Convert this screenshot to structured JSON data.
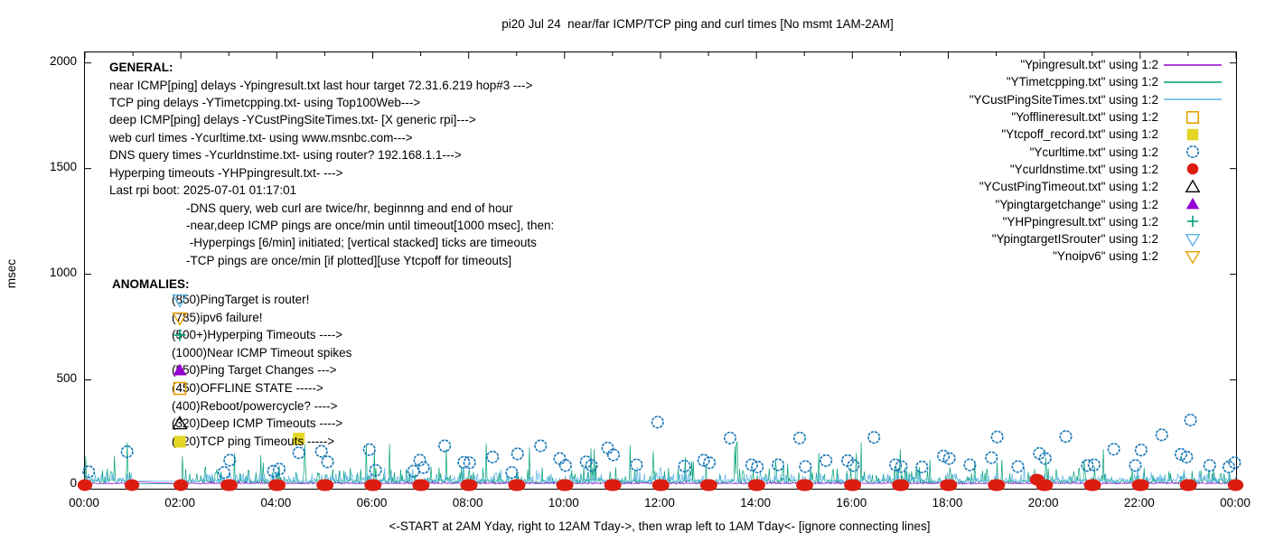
{
  "title": "pi20 Jul 24  near/far ICMP/TCP ping and curl times [No msmt 1AM-2AM]",
  "ylabel": "msec",
  "xlabel_note": "<-START at 2AM Yday, right to 12AM Tday->, then wrap left to 1AM Tday<- [ignore connecting lines]",
  "general": {
    "heading": "GENERAL:",
    "lines": [
      "near ICMP[ping] delays -Ypingresult.txt last hour target 72.31.6.219 hop#3 --->",
      "TCP ping delays -YTimetcpping.txt- using Top100Web--->",
      "deep ICMP[ping] delays -YCustPingSiteTimes.txt- [X generic rpi]--->",
      "web curl times -Ycurltime.txt- using www.msnbc.com--->",
      "DNS query times -Ycurldnstime.txt- using router? 192.168.1.1--->",
      "Hyperping timeouts -YHPpingresult.txt- --->",
      "Last rpi boot: 2025-07-01 01:17:01"
    ],
    "sub_lines": [
      "-DNS query, web curl are twice/hr, beginnng and end of hour",
      "-near,deep ICMP pings are once/min until timeout[1000 msec], then:",
      " -Hyperpings [6/min] initiated; [vertical stacked] ticks are timeouts",
      "-TCP pings are once/min [if plotted][use Ytcpoff for timeouts]"
    ]
  },
  "anomalies": {
    "heading": "ANOMALIES:",
    "items": [
      {
        "marker": "triangle-down-open",
        "color": "#5ab4e5",
        "label": "(850)PingTarget is router!"
      },
      {
        "marker": "triangle-down-open",
        "color": "#e8a000",
        "label": "(785)ipv6 failure!"
      },
      {
        "marker": "plus",
        "color": "#00a077",
        "label": "(500+)Hyperping Timeouts ---->"
      },
      {
        "marker": "none",
        "color": "#000000",
        "label": "(1000)Near ICMP Timeout spikes"
      },
      {
        "marker": "triangle-up-filled",
        "color": "#9400d3",
        "label": "(550)Ping Target Changes --->"
      },
      {
        "marker": "square-open",
        "color": "#e8a000",
        "label": "(450)OFFLINE STATE ----->"
      },
      {
        "marker": "none",
        "color": "#000000",
        "label": "(400)Reboot/powercycle? ---->"
      },
      {
        "marker": "triangle-up-open",
        "color": "#000000",
        "label": "(320)Deep ICMP Timeouts ---->"
      },
      {
        "marker": "square-filled",
        "color": "#e3d625",
        "label": "(220)TCP ping Timeouts ----->"
      }
    ]
  },
  "legend": {
    "entries": [
      {
        "label": "\"Ypingresult.txt\" using 1:2",
        "marker": "line",
        "color": "#9400d3"
      },
      {
        "label": "\"YTimetcpping.txt\" using 1:2",
        "marker": "line",
        "color": "#00a077"
      },
      {
        "label": "\"YCustPingSiteTimes.txt\" using 1:2",
        "marker": "line",
        "color": "#5ab4e5"
      },
      {
        "label": "\"Yofflineresult.txt\" using 1:2",
        "marker": "square-open",
        "color": "#e8a000"
      },
      {
        "label": "\"Ytcpoff_record.txt\" using 1:2",
        "marker": "square-filled",
        "color": "#e3d625"
      },
      {
        "label": "\"Ycurltime.txt\" using 1:2",
        "marker": "circle-open",
        "color": "#1576b5"
      },
      {
        "label": "\"Ycurldnstime.txt\" using 1:2",
        "marker": "circle-filled",
        "color": "#dd1c10"
      },
      {
        "label": "\"YCustPingTimeout.txt\" using 1:2",
        "marker": "triangle-up-open",
        "color": "#000000"
      },
      {
        "label": "\"Ypingtargetchange\" using 1:2",
        "marker": "triangle-up-filled",
        "color": "#9400d3"
      },
      {
        "label": "\"YHPpingresult.txt\" using 1:2",
        "marker": "plus",
        "color": "#00a077"
      },
      {
        "label": "\"YpingtargetISrouter\" using 1:2",
        "marker": "triangle-down-open",
        "color": "#5ab4e5"
      },
      {
        "label": "\"Ynoipv6\" using 1:2",
        "marker": "triangle-down-open",
        "color": "#e8a000"
      }
    ]
  },
  "chart_data": {
    "type": "line+scatter time series (gnuplot style)",
    "x_axis": {
      "tick_labels": [
        "00:00",
        "02:00",
        "04:00",
        "06:00",
        "08:00",
        "10:00",
        "12:00",
        "14:00",
        "16:00",
        "18:00",
        "20:00",
        "22:00",
        "00:00"
      ],
      "tick_hours": [
        0,
        2,
        4,
        6,
        8,
        10,
        12,
        14,
        16,
        18,
        20,
        22,
        24
      ],
      "minor_tick_every_hours": 1,
      "range_hours": [
        0,
        24
      ]
    },
    "y_axis": {
      "label": "msec",
      "ticks": [
        0,
        500,
        1000,
        1500,
        2000
      ],
      "range": [
        -15,
        2050
      ],
      "grid": false
    },
    "measurement_gap": "No measurements 01:00-02:00 (connecting line drawn across gap)",
    "noise_seed": 7,
    "noise_series": [
      {
        "name": "YTimetcpping.txt",
        "style": "line",
        "color": "#00a077",
        "description": "TCP ping delays, once/min; noisy spikes",
        "baseline_msec": 8,
        "typical_max_msec": 90,
        "rare_spike_max_msec": 210
      },
      {
        "name": "YCustPingSiteTimes.txt",
        "style": "line",
        "color": "#5ab4e5",
        "description": "deep ICMP ping delays, once/min; noisy",
        "baseline_msec": 10,
        "typical_max_msec": 60,
        "rare_spike_max_msec": 90
      },
      {
        "name": "Ypingresult.txt",
        "style": "line",
        "color": "#9400d3",
        "description": "near ICMP ping delays; nearly flat",
        "baseline_msec": 8,
        "typical_max_msec": 14,
        "rare_spike_max_msec": 20
      }
    ],
    "point_series": [
      {
        "name": "Ycurltime.txt",
        "style": "circle-open",
        "color": "#1576b5",
        "description": "web curl times, twice/hr (beginning and end of hour), msec",
        "points": [
          [
            0.08,
            65
          ],
          [
            0.88,
            160
          ],
          [
            2.9,
            62
          ],
          [
            3.02,
            120
          ],
          [
            3.93,
            68
          ],
          [
            4.05,
            78
          ],
          [
            4.46,
            155
          ],
          [
            4.93,
            162
          ],
          [
            5.06,
            112
          ],
          [
            5.93,
            170
          ],
          [
            6.06,
            72
          ],
          [
            6.85,
            68
          ],
          [
            6.98,
            120
          ],
          [
            7.06,
            85
          ],
          [
            7.5,
            188
          ],
          [
            7.9,
            110
          ],
          [
            8.02,
            108
          ],
          [
            8.5,
            135
          ],
          [
            8.9,
            62
          ],
          [
            9.02,
            150
          ],
          [
            9.5,
            188
          ],
          [
            9.9,
            128
          ],
          [
            10.02,
            95
          ],
          [
            10.45,
            112
          ],
          [
            10.56,
            95
          ],
          [
            10.9,
            178
          ],
          [
            11.02,
            145
          ],
          [
            11.5,
            98
          ],
          [
            11.94,
            300
          ],
          [
            12.5,
            92
          ],
          [
            12.9,
            120
          ],
          [
            13.02,
            108
          ],
          [
            13.45,
            225
          ],
          [
            13.9,
            98
          ],
          [
            14.02,
            88
          ],
          [
            14.45,
            98
          ],
          [
            14.9,
            225
          ],
          [
            15.02,
            90
          ],
          [
            15.45,
            118
          ],
          [
            15.9,
            118
          ],
          [
            16.02,
            95
          ],
          [
            16.45,
            228
          ],
          [
            16.9,
            98
          ],
          [
            17.02,
            90
          ],
          [
            17.45,
            88
          ],
          [
            17.9,
            140
          ],
          [
            18.02,
            128
          ],
          [
            18.45,
            98
          ],
          [
            18.9,
            132
          ],
          [
            19.02,
            230
          ],
          [
            19.45,
            90
          ],
          [
            19.9,
            152
          ],
          [
            20.02,
            128
          ],
          [
            20.45,
            232
          ],
          [
            20.9,
            95
          ],
          [
            21.04,
            98
          ],
          [
            21.45,
            172
          ],
          [
            21.9,
            95
          ],
          [
            22.02,
            168
          ],
          [
            22.45,
            240
          ],
          [
            22.85,
            148
          ],
          [
            22.97,
            135
          ],
          [
            23.05,
            310
          ],
          [
            23.45,
            95
          ],
          [
            23.85,
            88
          ],
          [
            23.97,
            108
          ]
        ]
      },
      {
        "name": "Ycurldnstime.txt",
        "style": "dot",
        "color": "#dd1c10",
        "description": "DNS query times, twice/hr, ~0-30 msec (plotted near axis)",
        "points": [
          [
            0,
            2
          ],
          [
            0.98,
            2
          ],
          [
            2,
            2
          ],
          [
            2.98,
            2
          ],
          [
            3.03,
            2
          ],
          [
            3.98,
            2
          ],
          [
            4.03,
            2
          ],
          [
            4.98,
            2
          ],
          [
            5.03,
            2
          ],
          [
            5.98,
            2
          ],
          [
            6.03,
            2
          ],
          [
            6.98,
            2
          ],
          [
            7.03,
            2
          ],
          [
            7.98,
            2
          ],
          [
            8.03,
            2
          ],
          [
            8.98,
            2
          ],
          [
            9.03,
            2
          ],
          [
            9.98,
            2
          ],
          [
            10.03,
            2
          ],
          [
            10.98,
            2
          ],
          [
            11.03,
            2
          ],
          [
            11.98,
            2
          ],
          [
            12.03,
            2
          ],
          [
            12.98,
            2
          ],
          [
            13.03,
            2
          ],
          [
            13.98,
            2
          ],
          [
            14.03,
            2
          ],
          [
            14.98,
            2
          ],
          [
            15.03,
            2
          ],
          [
            15.98,
            2
          ],
          [
            16.03,
            2
          ],
          [
            16.98,
            2
          ],
          [
            17.03,
            2
          ],
          [
            17.98,
            2
          ],
          [
            18.03,
            2
          ],
          [
            18.98,
            2
          ],
          [
            19.03,
            2
          ],
          [
            19.85,
            28
          ],
          [
            19.98,
            2
          ],
          [
            20.03,
            2
          ],
          [
            20.98,
            2
          ],
          [
            21.03,
            2
          ],
          [
            21.98,
            2
          ],
          [
            22.03,
            2
          ],
          [
            22.98,
            2
          ],
          [
            23.03,
            2
          ],
          [
            23.98,
            2
          ],
          [
            24,
            2
          ]
        ]
      },
      {
        "name": "Ytcpoff_record.txt",
        "style": "square-filled",
        "color": "#e3d625",
        "description": "TCP ping timeout record",
        "points": [
          [
            4.46,
            222
          ]
        ]
      }
    ]
  }
}
